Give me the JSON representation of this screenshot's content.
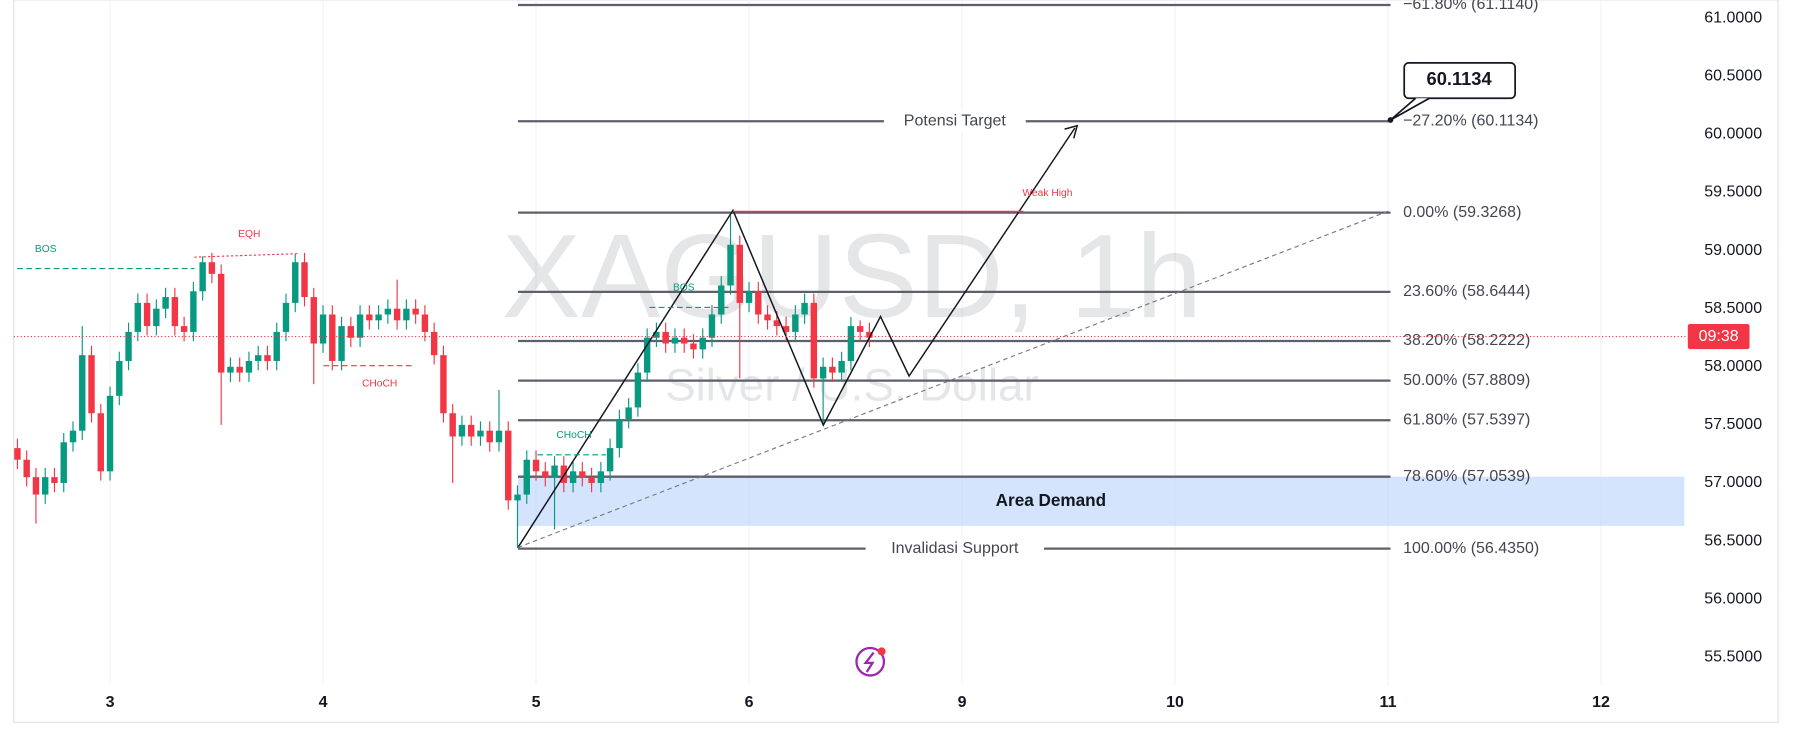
{
  "chart_data": {
    "type": "candlestick",
    "symbol_watermark": "XAGUSD, 1h",
    "description_watermark": "Silver / U.S. Dollar",
    "up_color": "#089981",
    "down_color": "#f23645",
    "grid": true,
    "ylim": [
      54.94,
      61.157
    ],
    "yticks": [
      {
        "value": 55.5,
        "label": "55.5000"
      },
      {
        "value": 56,
        "label": "56.0000"
      },
      {
        "value": 56.5,
        "label": "56.5000"
      },
      {
        "value": 57,
        "label": "57.0000"
      },
      {
        "value": 57.5,
        "label": "57.5000"
      },
      {
        "value": 58,
        "label": "58.0000"
      },
      {
        "value": 58.5,
        "label": "58.5000"
      },
      {
        "value": 59,
        "label": "59.0000"
      },
      {
        "value": 59.5,
        "label": "59.5000"
      },
      {
        "value": 60,
        "label": "60.0000"
      },
      {
        "value": 60.5,
        "label": "60.5000"
      },
      {
        "value": 61,
        "label": "61.0000"
      }
    ],
    "xlim": [
      -0.4,
      180
    ],
    "xticks": [
      {
        "value": 10,
        "label": "3"
      },
      {
        "value": 33,
        "label": "4"
      },
      {
        "value": 56,
        "label": "5"
      },
      {
        "value": 79,
        "label": "6"
      },
      {
        "value": 102,
        "label": "9"
      },
      {
        "value": 125,
        "label": "10"
      },
      {
        "value": 148,
        "label": "11"
      },
      {
        "value": 171,
        "label": "12"
      }
    ],
    "ohlc": [
      [
        57.3,
        57.38,
        57.12,
        57.2
      ],
      [
        57.2,
        57.28,
        56.97,
        57.05
      ],
      [
        57.05,
        57.13,
        56.65,
        56.9
      ],
      [
        56.9,
        57.13,
        56.82,
        57.05
      ],
      [
        57.05,
        57.13,
        56.92,
        57.0
      ],
      [
        57.0,
        57.43,
        56.92,
        57.35
      ],
      [
        57.35,
        57.53,
        57.27,
        57.45
      ],
      [
        57.45,
        58.35,
        57.37,
        58.1
      ],
      [
        58.1,
        58.18,
        57.52,
        57.6
      ],
      [
        57.6,
        57.68,
        57.02,
        57.1
      ],
      [
        57.1,
        57.83,
        57.02,
        57.75
      ],
      [
        57.75,
        58.13,
        57.67,
        58.05
      ],
      [
        58.05,
        58.38,
        57.97,
        58.3
      ],
      [
        58.3,
        58.63,
        58.22,
        58.55
      ],
      [
        58.55,
        58.63,
        58.27,
        58.35
      ],
      [
        58.35,
        58.58,
        58.27,
        58.5
      ],
      [
        58.5,
        58.68,
        58.42,
        58.6
      ],
      [
        58.6,
        58.68,
        58.27,
        58.35
      ],
      [
        58.35,
        58.43,
        58.22,
        58.3
      ],
      [
        58.3,
        58.73,
        58.22,
        58.65
      ],
      [
        58.65,
        58.95,
        58.57,
        58.9
      ],
      [
        58.9,
        58.98,
        58.72,
        58.8
      ],
      [
        58.8,
        58.88,
        57.5,
        57.95
      ],
      [
        57.95,
        58.08,
        57.87,
        58.0
      ],
      [
        58.0,
        58.08,
        57.87,
        57.95
      ],
      [
        57.95,
        58.13,
        57.87,
        58.05
      ],
      [
        58.05,
        58.18,
        57.97,
        58.1
      ],
      [
        58.1,
        58.18,
        57.97,
        58.05
      ],
      [
        58.05,
        58.38,
        57.97,
        58.3
      ],
      [
        58.3,
        58.63,
        58.22,
        58.55
      ],
      [
        58.55,
        58.97,
        58.47,
        58.9
      ],
      [
        58.9,
        58.98,
        58.52,
        58.6
      ],
      [
        58.6,
        58.68,
        57.85,
        58.2
      ],
      [
        58.2,
        58.53,
        58.12,
        58.45
      ],
      [
        58.45,
        58.53,
        57.97,
        58.05
      ],
      [
        58.05,
        58.43,
        57.97,
        58.35
      ],
      [
        58.35,
        58.43,
        58.17,
        58.25
      ],
      [
        58.25,
        58.53,
        58.17,
        58.45
      ],
      [
        58.45,
        58.53,
        58.32,
        58.4
      ],
      [
        58.4,
        58.53,
        58.32,
        58.45
      ],
      [
        58.45,
        58.58,
        58.37,
        58.5
      ],
      [
        58.5,
        58.75,
        58.32,
        58.4
      ],
      [
        58.4,
        58.58,
        58.32,
        58.5
      ],
      [
        58.5,
        58.58,
        58.37,
        58.45
      ],
      [
        58.45,
        58.53,
        58.22,
        58.3
      ],
      [
        58.3,
        58.38,
        58.02,
        58.1
      ],
      [
        58.1,
        58.18,
        57.52,
        57.6
      ],
      [
        57.6,
        57.68,
        57.0,
        57.4
      ],
      [
        57.4,
        57.58,
        57.32,
        57.5
      ],
      [
        57.5,
        57.58,
        57.32,
        57.4
      ],
      [
        57.4,
        57.53,
        57.32,
        57.45
      ],
      [
        57.45,
        57.53,
        57.27,
        57.35
      ],
      [
        57.35,
        57.8,
        57.27,
        57.45
      ],
      [
        57.45,
        57.53,
        56.77,
        56.85
      ],
      [
        56.85,
        56.98,
        56.44,
        56.9
      ],
      [
        56.9,
        57.28,
        56.82,
        57.2
      ],
      [
        57.2,
        57.28,
        57.02,
        57.1
      ],
      [
        57.1,
        57.18,
        56.97,
        57.05
      ],
      [
        57.05,
        57.23,
        56.6,
        57.15
      ],
      [
        57.15,
        57.23,
        56.92,
        57.0
      ],
      [
        57.0,
        57.18,
        56.92,
        57.1
      ],
      [
        57.1,
        57.18,
        56.97,
        57.05
      ],
      [
        57.05,
        57.13,
        56.92,
        57.0
      ],
      [
        57.0,
        57.18,
        56.92,
        57.1
      ],
      [
        57.1,
        57.38,
        57.02,
        57.3
      ],
      [
        57.3,
        57.63,
        57.22,
        57.55
      ],
      [
        57.55,
        57.73,
        57.47,
        57.65
      ],
      [
        57.65,
        58.03,
        57.57,
        57.95
      ],
      [
        57.95,
        58.33,
        57.87,
        58.25
      ],
      [
        58.25,
        58.38,
        58.17,
        58.3
      ],
      [
        58.3,
        58.38,
        58.12,
        58.2
      ],
      [
        58.2,
        58.33,
        58.12,
        58.25
      ],
      [
        58.25,
        58.33,
        58.12,
        58.2
      ],
      [
        58.2,
        58.28,
        58.07,
        58.15
      ],
      [
        58.15,
        58.33,
        58.07,
        58.25
      ],
      [
        58.25,
        58.53,
        58.17,
        58.45
      ],
      [
        58.45,
        58.78,
        58.37,
        58.7
      ],
      [
        58.7,
        59.33,
        58.62,
        59.05
      ],
      [
        59.05,
        59.13,
        57.9,
        58.55
      ],
      [
        58.55,
        58.73,
        58.47,
        58.65
      ],
      [
        58.65,
        58.73,
        58.37,
        58.45
      ],
      [
        58.45,
        58.53,
        58.32,
        58.4
      ],
      [
        58.4,
        58.48,
        58.27,
        58.35
      ],
      [
        58.35,
        58.43,
        58.22,
        58.3
      ],
      [
        58.3,
        58.53,
        58.22,
        58.45
      ],
      [
        58.45,
        58.63,
        58.37,
        58.55
      ],
      [
        58.55,
        58.63,
        57.82,
        57.9
      ],
      [
        57.9,
        58.08,
        57.5,
        58.0
      ],
      [
        58.0,
        58.08,
        57.87,
        57.95
      ],
      [
        57.95,
        58.13,
        57.87,
        58.05
      ],
      [
        58.05,
        58.43,
        57.97,
        58.35
      ],
      [
        58.35,
        58.4,
        58.22,
        58.3
      ],
      [
        58.3,
        58.38,
        58.17,
        58.25
      ]
    ],
    "fib_levels": [
      {
        "value": 61.114,
        "label": "−61.80% (61.1140)"
      },
      {
        "value": 60.1134,
        "label": "−27.20% (60.1134)",
        "tag": "Potensi Target"
      },
      {
        "value": 59.3268,
        "label": "0.00% (59.3268)"
      },
      {
        "value": 58.6444,
        "label": "23.60% (58.6444)"
      },
      {
        "value": 58.2222,
        "label": "38.20% (58.2222)"
      },
      {
        "value": 57.8809,
        "label": "50.00% (57.8809)"
      },
      {
        "value": 57.5397,
        "label": "61.80% (57.5397)"
      },
      {
        "value": 57.0539,
        "label": "78.60% (57.0539)"
      },
      {
        "value": 56.435,
        "label": "100.00% (56.4350)",
        "tag": "Invalidasi Support"
      }
    ],
    "demand_zone": {
      "label": "Area Demand",
      "top": 57.0539,
      "bottom": 56.63
    },
    "callout": "60.1134",
    "last_price": 58.26,
    "countdown": "09:38",
    "annotations": [
      "BOS",
      "EQH",
      "CHoCH",
      "CHoCH",
      "BOS",
      "Weak High"
    ]
  }
}
